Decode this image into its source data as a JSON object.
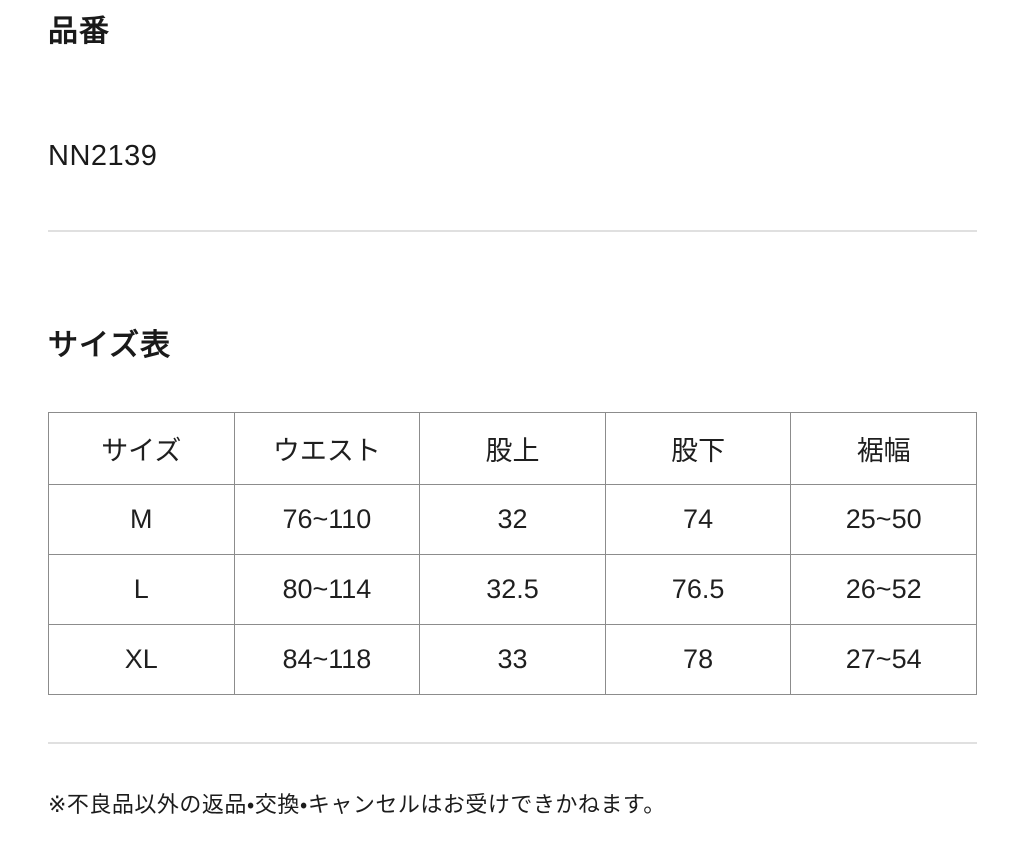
{
  "page": {
    "product_number_section": {
      "heading": "品番",
      "value": "NN2139"
    },
    "size_table_section": {
      "heading": "サイズ表",
      "columns": [
        "サイズ",
        "ウエスト",
        "股上",
        "股下",
        "裾幅"
      ],
      "rows": [
        [
          "M",
          "76~110",
          "32",
          "74",
          "25~50"
        ],
        [
          "L",
          "80~114",
          "32.5",
          "76.5",
          "26~52"
        ],
        [
          "XL",
          "84~118",
          "33",
          "78",
          "27~54"
        ]
      ]
    },
    "note": "※不良品以外の返品・交換・キャンセルはお受けできかねます。"
  },
  "chart_data": {
    "type": "table",
    "title": "サイズ表",
    "columns": [
      "サイズ",
      "ウエスト",
      "股上",
      "股下",
      "裾幅"
    ],
    "rows": [
      {
        "size": "M",
        "waist": "76~110",
        "rise": 32,
        "inseam": 74,
        "hem_width": "25~50"
      },
      {
        "size": "L",
        "waist": "80~114",
        "rise": 32.5,
        "inseam": 76.5,
        "hem_width": "26~52"
      },
      {
        "size": "XL",
        "waist": "84~118",
        "rise": 33,
        "inseam": 78,
        "hem_width": "27~54"
      }
    ]
  },
  "colors": {
    "background": "#ffffff",
    "text": "#1a1a1a",
    "table_border": "#8c8c8c",
    "divider": "#e0e0e0"
  }
}
